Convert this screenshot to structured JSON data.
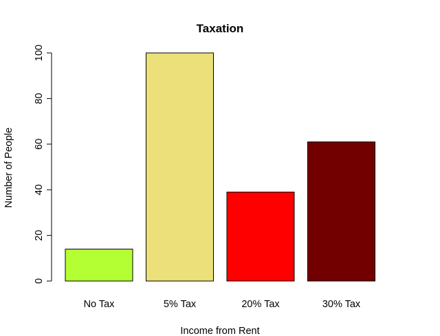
{
  "chart_data": {
    "type": "bar",
    "title": "Taxation",
    "xlabel": "Income from Rent",
    "ylabel": "Number of People",
    "categories": [
      "No Tax",
      "5% Tax",
      "20% Tax",
      "30% Tax"
    ],
    "values": [
      14,
      100,
      39,
      61
    ],
    "colors": [
      "#b3ff33",
      "#ebe07a",
      "#ff0000",
      "#730000"
    ],
    "ylim": [
      0,
      100
    ],
    "yticks": [
      0,
      20,
      40,
      60,
      80,
      100
    ],
    "ytick_labels": [
      "0",
      "20",
      "40",
      "60",
      "80",
      "100"
    ],
    "grid": false,
    "legend": "none"
  }
}
